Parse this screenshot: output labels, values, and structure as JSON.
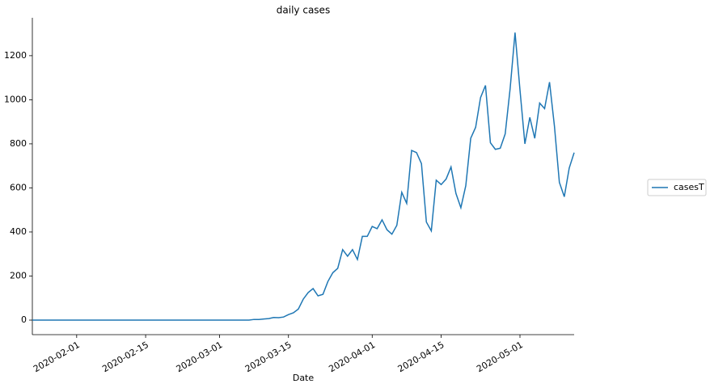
{
  "chart_data": {
    "type": "line",
    "title": "daily cases",
    "x_label": "Date",
    "x": [
      "2020-01-23",
      "2020-01-24",
      "2020-01-25",
      "2020-01-26",
      "2020-01-27",
      "2020-01-28",
      "2020-01-29",
      "2020-01-30",
      "2020-01-31",
      "2020-02-01",
      "2020-02-02",
      "2020-02-03",
      "2020-02-04",
      "2020-02-05",
      "2020-02-06",
      "2020-02-07",
      "2020-02-08",
      "2020-02-09",
      "2020-02-10",
      "2020-02-11",
      "2020-02-12",
      "2020-02-13",
      "2020-02-14",
      "2020-02-15",
      "2020-02-16",
      "2020-02-17",
      "2020-02-18",
      "2020-02-19",
      "2020-02-20",
      "2020-02-21",
      "2020-02-22",
      "2020-02-23",
      "2020-02-24",
      "2020-02-25",
      "2020-02-26",
      "2020-02-27",
      "2020-02-28",
      "2020-02-29",
      "2020-03-01",
      "2020-03-02",
      "2020-03-03",
      "2020-03-04",
      "2020-03-05",
      "2020-03-06",
      "2020-03-07",
      "2020-03-08",
      "2020-03-09",
      "2020-03-10",
      "2020-03-11",
      "2020-03-12",
      "2020-03-13",
      "2020-03-14",
      "2020-03-15",
      "2020-03-16",
      "2020-03-17",
      "2020-03-18",
      "2020-03-19",
      "2020-03-20",
      "2020-03-21",
      "2020-03-22",
      "2020-03-23",
      "2020-03-24",
      "2020-03-25",
      "2020-03-26",
      "2020-03-27",
      "2020-03-28",
      "2020-03-29",
      "2020-03-30",
      "2020-03-31",
      "2020-04-01",
      "2020-04-02",
      "2020-04-03",
      "2020-04-04",
      "2020-04-05",
      "2020-04-06",
      "2020-04-07",
      "2020-04-08",
      "2020-04-09",
      "2020-04-10",
      "2020-04-11",
      "2020-04-12",
      "2020-04-13",
      "2020-04-14",
      "2020-04-15",
      "2020-04-16",
      "2020-04-17",
      "2020-04-18",
      "2020-04-19",
      "2020-04-20",
      "2020-04-21",
      "2020-04-22",
      "2020-04-23",
      "2020-04-24",
      "2020-04-25",
      "2020-04-26",
      "2020-04-27",
      "2020-04-28",
      "2020-04-29",
      "2020-04-30",
      "2020-05-01",
      "2020-05-02",
      "2020-05-03",
      "2020-05-04",
      "2020-05-05",
      "2020-05-06",
      "2020-05-07",
      "2020-05-08",
      "2020-05-09",
      "2020-05-10",
      "2020-05-11",
      "2020-05-12"
    ],
    "series": [
      {
        "name": "casesT",
        "color": "#1f77b4",
        "values": [
          0,
          0,
          0,
          0,
          0,
          0,
          0,
          0,
          0,
          0,
          0,
          0,
          0,
          0,
          0,
          0,
          0,
          0,
          0,
          0,
          0,
          0,
          0,
          0,
          0,
          0,
          0,
          0,
          0,
          0,
          0,
          0,
          0,
          0,
          0,
          0,
          0,
          0,
          0,
          0,
          0,
          0,
          0,
          0,
          0,
          3,
          3,
          5,
          7,
          12,
          11,
          14,
          25,
          33,
          50,
          95,
          125,
          143,
          110,
          117,
          175,
          215,
          235,
          320,
          290,
          320,
          275,
          380,
          380,
          425,
          415,
          455,
          410,
          390,
          430,
          580,
          530,
          770,
          760,
          710,
          445,
          405,
          635,
          615,
          640,
          695,
          575,
          510,
          610,
          825,
          875,
          1010,
          1065,
          805,
          775,
          780,
          845,
          1050,
          1305,
          1045,
          800,
          920,
          825,
          985,
          960,
          1080,
          880,
          625,
          560,
          690,
          760
        ]
      }
    ],
    "xlim": [
      "2020-01-23",
      "2020-05-12"
    ],
    "xticks": [
      "2020-02-01",
      "2020-02-15",
      "2020-03-01",
      "2020-03-15",
      "2020-04-01",
      "2020-04-15",
      "2020-05-01"
    ],
    "ylim": [
      -66,
      1372
    ],
    "yticks": [
      0,
      200,
      400,
      600,
      800,
      1000,
      1200
    ],
    "legend": "outside right"
  }
}
